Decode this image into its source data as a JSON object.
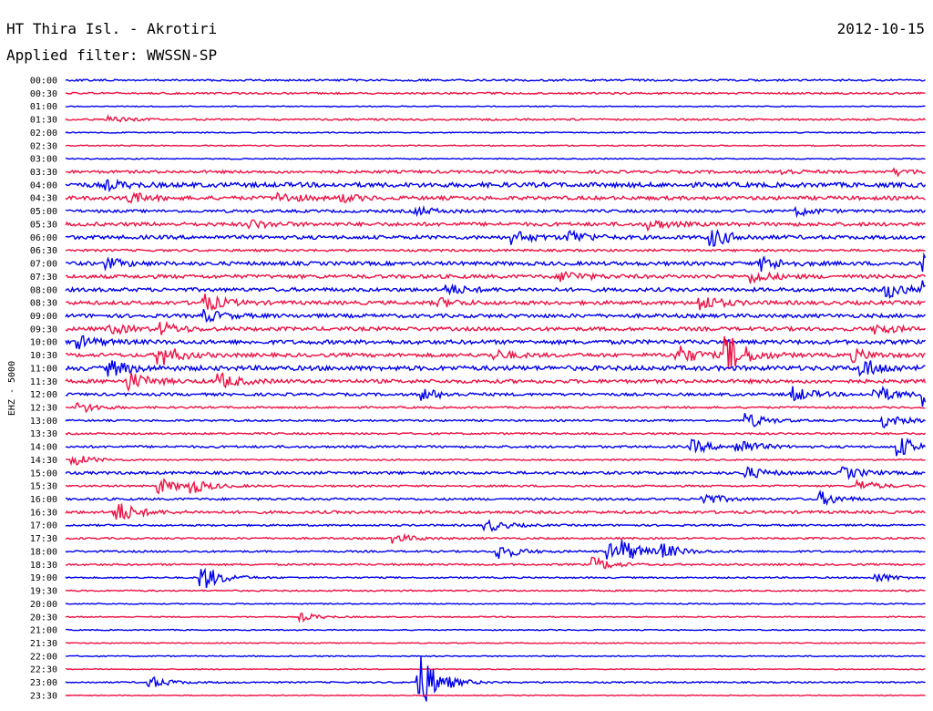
{
  "header": {
    "station": "HT Thira Isl. - Akrotiri",
    "date": "2012-10-15",
    "filter": "Applied filter: WWSSN-SP"
  },
  "chart_data": {
    "type": "line",
    "title": "HT Thira Isl. - Akrotiri",
    "subtitle": "Applied filter: WWSSN-SP",
    "date": "2012-10-15",
    "ylabel": "EHZ - 5000",
    "xlabel": "",
    "trace_colors": [
      "#0000ee",
      "#ee1144"
    ],
    "y_ticks": [
      "00:00",
      "00:30",
      "01:00",
      "01:30",
      "02:00",
      "02:30",
      "03:00",
      "03:30",
      "04:00",
      "04:30",
      "05:00",
      "05:30",
      "06:00",
      "06:30",
      "07:00",
      "07:30",
      "08:00",
      "08:30",
      "09:00",
      "09:30",
      "10:00",
      "10:30",
      "11:00",
      "11:30",
      "12:00",
      "12:30",
      "13:00",
      "13:30",
      "14:00",
      "14:30",
      "15:00",
      "15:30",
      "16:00",
      "16:30",
      "17:00",
      "17:30",
      "18:00",
      "18:30",
      "19:00",
      "19:30",
      "20:00",
      "20:30",
      "21:00",
      "21:30",
      "22:00",
      "22:30",
      "23:00",
      "23:30"
    ],
    "x_range_minutes": [
      0,
      30
    ],
    "grid": false,
    "noise_levels": [
      1,
      1,
      0.5,
      1,
      0.6,
      0.6,
      0.6,
      1.5,
      2.5,
      2,
      1.5,
      2,
      2,
      1.2,
      2,
      2,
      2,
      2,
      2,
      2,
      2.2,
      2,
      2.5,
      2,
      1.5,
      1,
      1,
      1,
      1.2,
      0.8,
      1.5,
      1,
      1.2,
      1.5,
      1,
      1,
      1,
      1,
      0.8,
      0.8,
      0.6,
      0.6,
      0.6,
      0.5,
      0.6,
      0.5,
      0.8,
      0.5
    ],
    "events": [
      {
        "row": 3,
        "minute": 1.6,
        "amplitude": 3
      },
      {
        "row": 7,
        "minute": 25,
        "amplitude": 3
      },
      {
        "row": 7,
        "minute": 29,
        "amplitude": 3
      },
      {
        "row": 8,
        "minute": 1.5,
        "amplitude": 4
      },
      {
        "row": 9,
        "minute": 2.2,
        "amplitude": 6
      },
      {
        "row": 9,
        "minute": 7.5,
        "amplitude": 5
      },
      {
        "row": 9,
        "minute": 9.6,
        "amplitude": 4
      },
      {
        "row": 10,
        "minute": 12.3,
        "amplitude": 4
      },
      {
        "row": 10,
        "minute": 25.6,
        "amplitude": 4
      },
      {
        "row": 11,
        "minute": 6.5,
        "amplitude": 4
      },
      {
        "row": 11,
        "minute": 20.4,
        "amplitude": 5
      },
      {
        "row": 12,
        "minute": 15.6,
        "amplitude": 7
      },
      {
        "row": 12,
        "minute": 17.6,
        "amplitude": 7
      },
      {
        "row": 12,
        "minute": 22.6,
        "amplitude": 9
      },
      {
        "row": 14,
        "minute": 1.5,
        "amplitude": 5
      },
      {
        "row": 14,
        "minute": 24.3,
        "amplitude": 8
      },
      {
        "row": 14,
        "minute": 30,
        "amplitude": 10
      },
      {
        "row": 15,
        "minute": 17.4,
        "amplitude": 6
      },
      {
        "row": 15,
        "minute": 24,
        "amplitude": 6
      },
      {
        "row": 16,
        "minute": 13.4,
        "amplitude": 5
      },
      {
        "row": 16,
        "minute": 30,
        "amplitude": 10
      },
      {
        "row": 16,
        "minute": 28.7,
        "amplitude": 8
      },
      {
        "row": 17,
        "minute": 4.9,
        "amplitude": 9
      },
      {
        "row": 17,
        "minute": 13,
        "amplitude": 5
      },
      {
        "row": 17,
        "minute": 22.2,
        "amplitude": 8
      },
      {
        "row": 18,
        "minute": 4.9,
        "amplitude": 6
      },
      {
        "row": 19,
        "minute": 1.6,
        "amplitude": 5
      },
      {
        "row": 19,
        "minute": 3.4,
        "amplitude": 6
      },
      {
        "row": 19,
        "minute": 28.3,
        "amplitude": 5
      },
      {
        "row": 20,
        "minute": 0.5,
        "amplitude": 6
      },
      {
        "row": 21,
        "minute": 3.3,
        "amplitude": 12
      },
      {
        "row": 21,
        "minute": 15,
        "amplitude": 5
      },
      {
        "row": 21,
        "minute": 21.4,
        "amplitude": 10
      },
      {
        "row": 21,
        "minute": 23.1,
        "amplitude": 22
      },
      {
        "row": 21,
        "minute": 27.5,
        "amplitude": 6
      },
      {
        "row": 22,
        "minute": 1.6,
        "amplitude": 8
      },
      {
        "row": 22,
        "minute": 27.8,
        "amplitude": 10
      },
      {
        "row": 23,
        "minute": 2.2,
        "amplitude": 10
      },
      {
        "row": 23,
        "minute": 5.4,
        "amplitude": 8
      },
      {
        "row": 24,
        "minute": 12.5,
        "amplitude": 6
      },
      {
        "row": 24,
        "minute": 25.4,
        "amplitude": 8
      },
      {
        "row": 24,
        "minute": 28.3,
        "amplitude": 9
      },
      {
        "row": 24,
        "minute": 30,
        "amplitude": 14
      },
      {
        "row": 25,
        "minute": 0.5,
        "amplitude": 6
      },
      {
        "row": 26,
        "minute": 23.8,
        "amplitude": 8
      },
      {
        "row": 26,
        "minute": 28.6,
        "amplitude": 7
      },
      {
        "row": 28,
        "minute": 21.9,
        "amplitude": 7
      },
      {
        "row": 28,
        "minute": 23.5,
        "amplitude": 8
      },
      {
        "row": 28,
        "minute": 29.1,
        "amplitude": 11
      },
      {
        "row": 29,
        "minute": 0.3,
        "amplitude": 6
      },
      {
        "row": 30,
        "minute": 23.8,
        "amplitude": 6
      },
      {
        "row": 30,
        "minute": 27.2,
        "amplitude": 6
      },
      {
        "row": 31,
        "minute": 3.3,
        "amplitude": 8
      },
      {
        "row": 31,
        "minute": 4.4,
        "amplitude": 7
      },
      {
        "row": 31,
        "minute": 27.7,
        "amplitude": 6
      },
      {
        "row": 32,
        "minute": 22.3,
        "amplitude": 6
      },
      {
        "row": 32,
        "minute": 26.4,
        "amplitude": 7
      },
      {
        "row": 33,
        "minute": 1.8,
        "amplitude": 12
      },
      {
        "row": 34,
        "minute": 14.7,
        "amplitude": 7
      },
      {
        "row": 35,
        "minute": 11.5,
        "amplitude": 5
      },
      {
        "row": 36,
        "minute": 15.1,
        "amplitude": 9
      },
      {
        "row": 36,
        "minute": 19,
        "amplitude": 8
      },
      {
        "row": 36,
        "minute": 19.4,
        "amplitude": 10
      },
      {
        "row": 36,
        "minute": 20.8,
        "amplitude": 8
      },
      {
        "row": 37,
        "minute": 18.5,
        "amplitude": 7
      },
      {
        "row": 38,
        "minute": 4.8,
        "amplitude": 14
      },
      {
        "row": 38,
        "minute": 28.3,
        "amplitude": 5
      },
      {
        "row": 41,
        "minute": 8.3,
        "amplitude": 4
      },
      {
        "row": 46,
        "minute": 3,
        "amplitude": 6
      },
      {
        "row": 46,
        "minute": 12.4,
        "amplitude": 30
      }
    ]
  }
}
